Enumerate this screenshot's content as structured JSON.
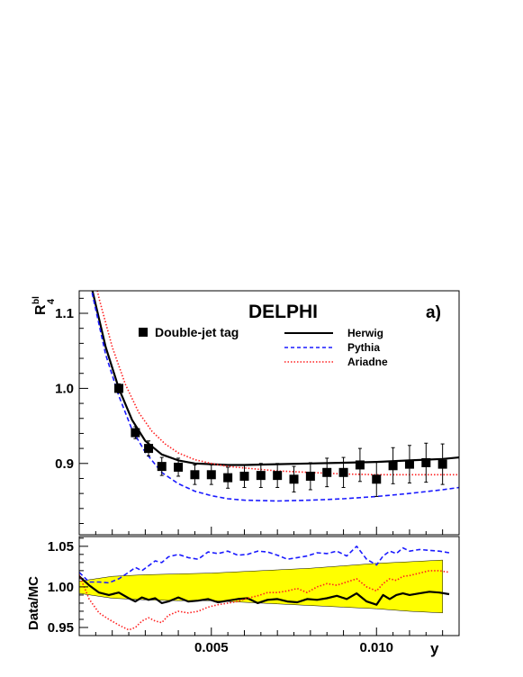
{
  "chart_data": [
    {
      "type": "line",
      "panel": "main",
      "title": "DELPHI",
      "panel_label": "a)",
      "ylabel": "R",
      "ylabel_sub": "4",
      "ylabel_sup": "bl",
      "xlim": [
        0.001,
        0.0125
      ],
      "ylim": [
        0.805,
        1.13
      ],
      "yticks": [
        0.9,
        1.0,
        1.1
      ],
      "ytick_labels": [
        "0.9",
        "1.0",
        "1.1"
      ],
      "grid": false,
      "legend_placement": "top",
      "data_series": {
        "name": "Double-jet tag",
        "marker": "square",
        "x": [
          0.0022,
          0.0027,
          0.0031,
          0.0035,
          0.004,
          0.0045,
          0.005,
          0.0055,
          0.006,
          0.0065,
          0.007,
          0.0075,
          0.008,
          0.0085,
          0.009,
          0.0095,
          0.01,
          0.0105,
          0.011,
          0.0115,
          0.012
        ],
        "y": [
          1.0,
          0.941,
          0.92,
          0.896,
          0.895,
          0.885,
          0.885,
          0.881,
          0.883,
          0.884,
          0.884,
          0.879,
          0.883,
          0.888,
          0.888,
          0.898,
          0.879,
          0.897,
          0.899,
          0.901,
          0.899
        ],
        "err": [
          0.006,
          0.008,
          0.01,
          0.012,
          0.012,
          0.013,
          0.013,
          0.014,
          0.015,
          0.016,
          0.016,
          0.017,
          0.018,
          0.019,
          0.02,
          0.022,
          0.023,
          0.024,
          0.025,
          0.026,
          0.027
        ]
      },
      "series": [
        {
          "name": "Herwig",
          "color": "#000000",
          "style": "solid",
          "x": [
            0.001,
            0.0014,
            0.0018,
            0.0022,
            0.0026,
            0.003,
            0.0035,
            0.004,
            0.0045,
            0.005,
            0.0055,
            0.006,
            0.007,
            0.008,
            0.009,
            0.01,
            0.011,
            0.012,
            0.0125
          ],
          "y": [
            1.28,
            1.13,
            1.055,
            1.0,
            0.958,
            0.93,
            0.912,
            0.904,
            0.9,
            0.899,
            0.898,
            0.898,
            0.899,
            0.9,
            0.901,
            0.902,
            0.904,
            0.906,
            0.908
          ]
        },
        {
          "name": "Pythia",
          "color": "#1a1aff",
          "style": "dashed",
          "x": [
            0.001,
            0.0014,
            0.0018,
            0.0022,
            0.0026,
            0.003,
            0.0035,
            0.004,
            0.0045,
            0.005,
            0.0055,
            0.006,
            0.007,
            0.008,
            0.009,
            0.01,
            0.011,
            0.012,
            0.0125
          ],
          "y": [
            1.28,
            1.125,
            1.045,
            0.99,
            0.945,
            0.915,
            0.888,
            0.873,
            0.863,
            0.857,
            0.853,
            0.851,
            0.85,
            0.851,
            0.853,
            0.856,
            0.86,
            0.865,
            0.868
          ]
        },
        {
          "name": "Ariadne",
          "color": "#ff2020",
          "style": "dotted",
          "x": [
            0.0012,
            0.0016,
            0.002,
            0.0024,
            0.0028,
            0.0032,
            0.0036,
            0.004,
            0.0045,
            0.005,
            0.0055,
            0.006,
            0.007,
            0.008,
            0.009,
            0.01,
            0.011,
            0.012,
            0.0125
          ],
          "y": [
            1.2,
            1.12,
            1.055,
            1.005,
            0.968,
            0.943,
            0.926,
            0.914,
            0.905,
            0.9,
            0.896,
            0.894,
            0.89,
            0.888,
            0.886,
            0.885,
            0.885,
            0.885,
            0.885
          ]
        }
      ]
    },
    {
      "type": "line",
      "panel": "ratio",
      "ylabel": "Data/MC",
      "xlabel": "y",
      "xlim": [
        0.001,
        0.0125
      ],
      "ylim": [
        0.94,
        1.062
      ],
      "yticks": [
        0.95,
        1.0,
        1.05
      ],
      "ytick_labels": [
        "0.95",
        "1.00",
        "1.05"
      ],
      "xticks": [
        0.005,
        0.01
      ],
      "xtick_labels": [
        "0.005",
        "0.010"
      ],
      "band": {
        "color": "#ffff00",
        "x": [
          0.001,
          0.002,
          0.003,
          0.004,
          0.005,
          0.006,
          0.007,
          0.008,
          0.009,
          0.01,
          0.011,
          0.012
        ],
        "upper": [
          1.007,
          1.013,
          1.015,
          1.016,
          1.017,
          1.019,
          1.021,
          1.023,
          1.026,
          1.029,
          1.031,
          1.033
        ],
        "lower": [
          0.992,
          0.986,
          0.984,
          0.983,
          0.983,
          0.981,
          0.979,
          0.977,
          0.975,
          0.973,
          0.97,
          0.968
        ]
      },
      "series": [
        {
          "name": "Herwig",
          "color": "#000000",
          "style": "solid",
          "x": [
            0.001,
            0.0013,
            0.0016,
            0.0019,
            0.0022,
            0.0025,
            0.0027,
            0.0029,
            0.0031,
            0.0033,
            0.0035,
            0.0037,
            0.004,
            0.0043,
            0.0046,
            0.0049,
            0.0052,
            0.0055,
            0.0058,
            0.0061,
            0.0064,
            0.0067,
            0.007,
            0.0073,
            0.0076,
            0.0079,
            0.0082,
            0.0085,
            0.0088,
            0.0091,
            0.0094,
            0.0097,
            0.01,
            0.0102,
            0.0104,
            0.0106,
            0.0108,
            0.011,
            0.0113,
            0.0116,
            0.0119,
            0.0122
          ],
          "y": [
            1.013,
            1.002,
            0.993,
            0.99,
            0.993,
            0.986,
            0.982,
            0.987,
            0.984,
            0.986,
            0.98,
            0.982,
            0.987,
            0.982,
            0.983,
            0.985,
            0.981,
            0.983,
            0.985,
            0.986,
            0.98,
            0.984,
            0.985,
            0.982,
            0.981,
            0.985,
            0.984,
            0.986,
            0.989,
            0.985,
            0.992,
            0.982,
            0.978,
            0.99,
            0.985,
            0.99,
            0.992,
            0.99,
            0.992,
            0.994,
            0.993,
            0.991
          ]
        },
        {
          "name": "Pythia",
          "color": "#1a1aff",
          "style": "dashed",
          "x": [
            0.001,
            0.0013,
            0.0016,
            0.0019,
            0.0022,
            0.0025,
            0.0027,
            0.0029,
            0.0031,
            0.0033,
            0.0035,
            0.0037,
            0.004,
            0.0043,
            0.0046,
            0.0049,
            0.0052,
            0.0055,
            0.0058,
            0.0061,
            0.0064,
            0.0067,
            0.007,
            0.0073,
            0.0076,
            0.0079,
            0.0082,
            0.0085,
            0.0088,
            0.0091,
            0.0094,
            0.0097,
            0.01,
            0.0102,
            0.0104,
            0.0106,
            0.0108,
            0.011,
            0.0113,
            0.0116,
            0.0119,
            0.0122
          ],
          "y": [
            1.018,
            1.006,
            1.006,
            1.005,
            1.01,
            1.018,
            1.024,
            1.02,
            1.026,
            1.032,
            1.03,
            1.037,
            1.04,
            1.036,
            1.034,
            1.043,
            1.041,
            1.044,
            1.039,
            1.04,
            1.044,
            1.043,
            1.039,
            1.034,
            1.036,
            1.038,
            1.042,
            1.041,
            1.044,
            1.038,
            1.05,
            1.034,
            1.027,
            1.038,
            1.044,
            1.041,
            1.048,
            1.044,
            1.046,
            1.045,
            1.044,
            1.042
          ]
        },
        {
          "name": "Ariadne",
          "color": "#ff2020",
          "style": "dotted",
          "x": [
            0.001,
            0.0013,
            0.0016,
            0.0019,
            0.0022,
            0.0025,
            0.0027,
            0.0029,
            0.0031,
            0.0033,
            0.0035,
            0.0037,
            0.004,
            0.0043,
            0.0046,
            0.0049,
            0.0052,
            0.0055,
            0.0058,
            0.0061,
            0.0064,
            0.0067,
            0.007,
            0.0073,
            0.0076,
            0.0079,
            0.0082,
            0.0085,
            0.0088,
            0.0091,
            0.0094,
            0.0097,
            0.01,
            0.0102,
            0.0104,
            0.0106,
            0.0108,
            0.011,
            0.0113,
            0.0116,
            0.0119,
            0.0122
          ],
          "y": [
            1.015,
            0.985,
            0.968,
            0.96,
            0.953,
            0.947,
            0.95,
            0.958,
            0.962,
            0.958,
            0.956,
            0.965,
            0.97,
            0.968,
            0.97,
            0.975,
            0.978,
            0.98,
            0.982,
            0.986,
            0.989,
            0.993,
            0.993,
            0.995,
            0.998,
            0.993,
            1.0,
            1.004,
            1.002,
            1.006,
            1.01,
            1.0,
            0.995,
            1.004,
            1.01,
            1.008,
            1.013,
            1.014,
            1.017,
            1.02,
            1.02,
            1.018
          ]
        }
      ]
    }
  ]
}
